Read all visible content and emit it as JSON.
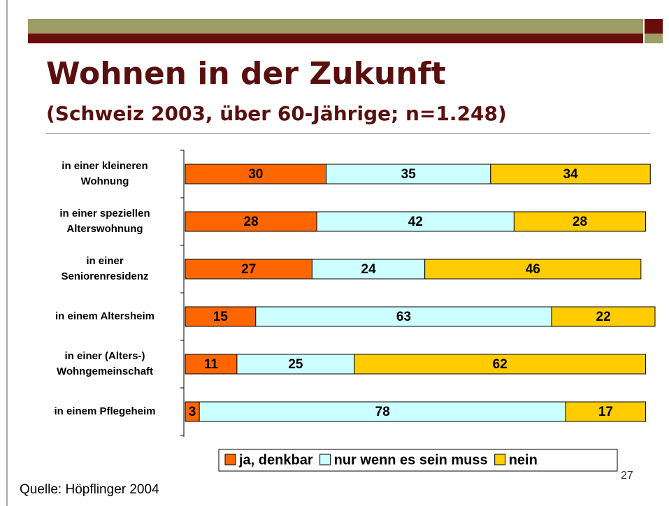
{
  "chart_data": {
    "type": "stacked-bar-horizontal",
    "title": "Wohnen in der Zukunft",
    "subtitle": "(Schweiz 2003, über 60-Jährige; n=1.248)",
    "categories": [
      [
        "in einer kleineren",
        "Wohnung"
      ],
      [
        "in einer speziellen",
        "Alterswohnung"
      ],
      [
        "in einer",
        "Seniorenresidenz"
      ],
      [
        "in einem Altersheim"
      ],
      [
        "in einer (Alters-)",
        "Wohngemeinschaft"
      ],
      [
        "in einem Pflegeheim"
      ]
    ],
    "series": [
      {
        "name": "ja, denkbar",
        "color": "#ff6600",
        "values": [
          30,
          28,
          27,
          15,
          11,
          3
        ]
      },
      {
        "name": "nur wenn es sein muss",
        "color": "#ccffff",
        "values": [
          35,
          42,
          24,
          63,
          25,
          78
        ]
      },
      {
        "name": "nein",
        "color": "#ffcc00",
        "values": [
          34,
          28,
          46,
          22,
          62,
          17
        ]
      }
    ],
    "xlim": [
      0,
      100
    ],
    "legend": "bottom",
    "page_number": "27",
    "source": "Quelle: Höpflinger 2004"
  }
}
